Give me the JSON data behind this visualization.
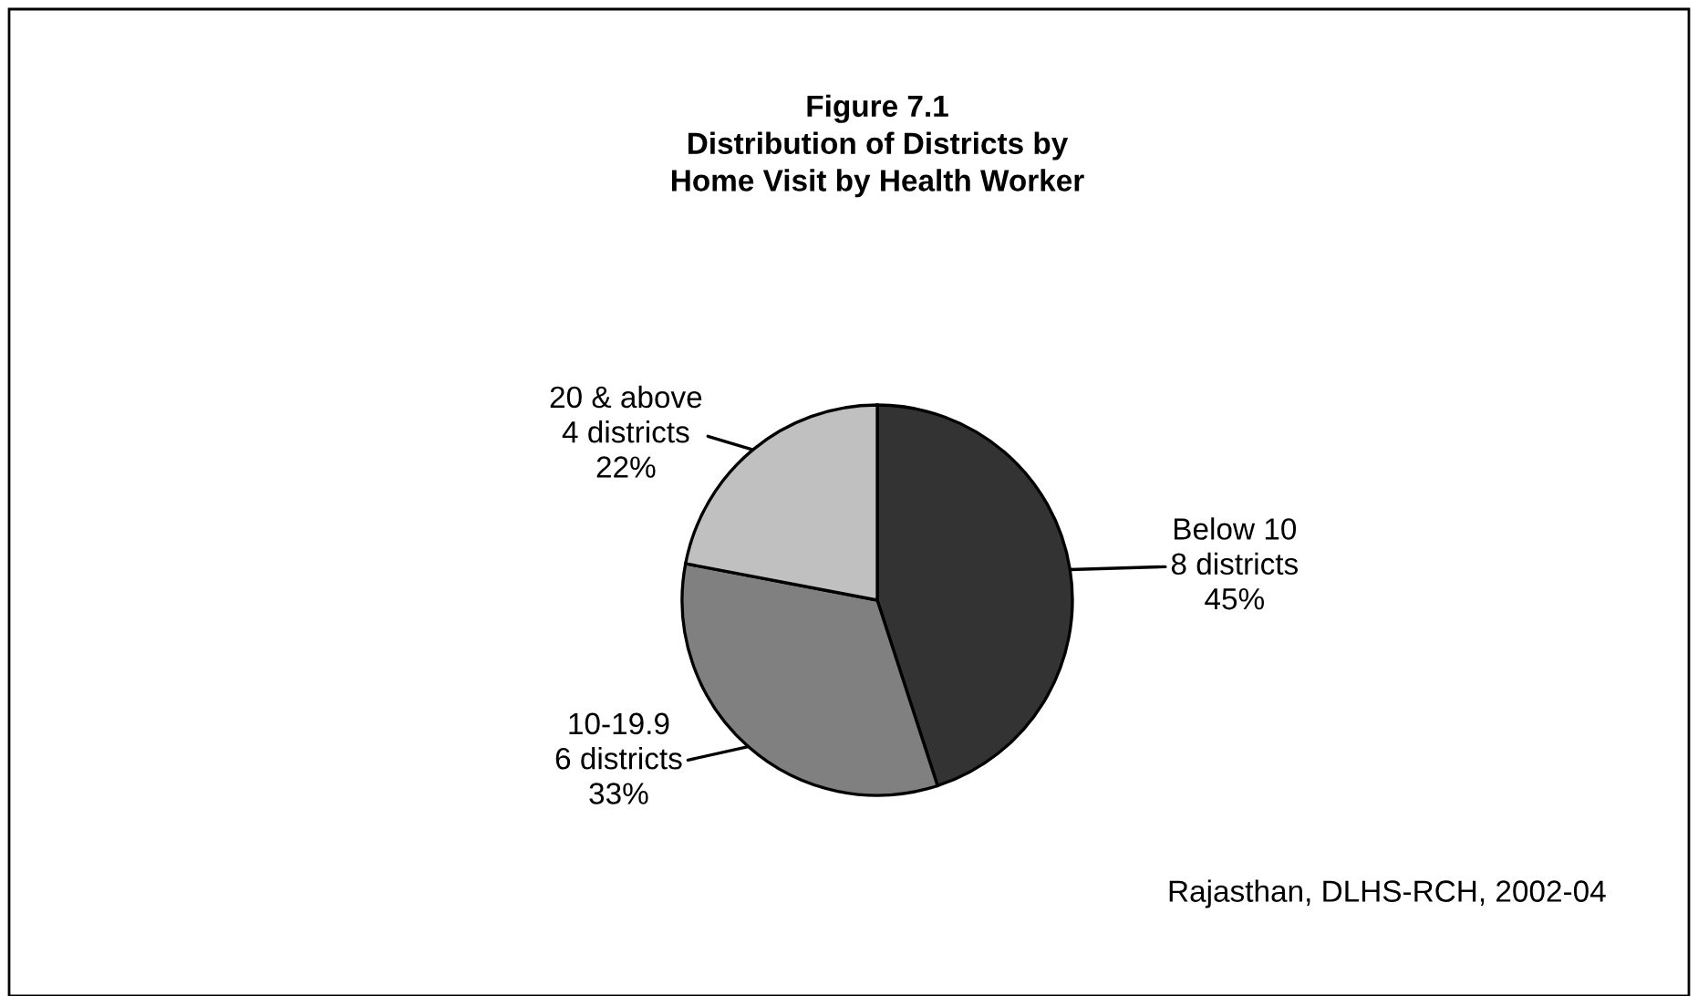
{
  "chart_data": {
    "type": "pie",
    "title": "Figure 7.1\nDistribution of Districts by\nHome Visit by Health Worker",
    "categories": [
      "Below 10",
      "10-19.9",
      "20 & above"
    ],
    "values": [
      45,
      33,
      22
    ],
    "value_labels": [
      "8 districts\n45%",
      "6 districts\n33%",
      "4 districts\n22%"
    ],
    "colors": [
      "#333333",
      "#808080",
      "#c0c0c0"
    ],
    "legend": false,
    "annotations": [
      "Rajasthan, DLHS-RCH, 2002-04"
    ]
  }
}
